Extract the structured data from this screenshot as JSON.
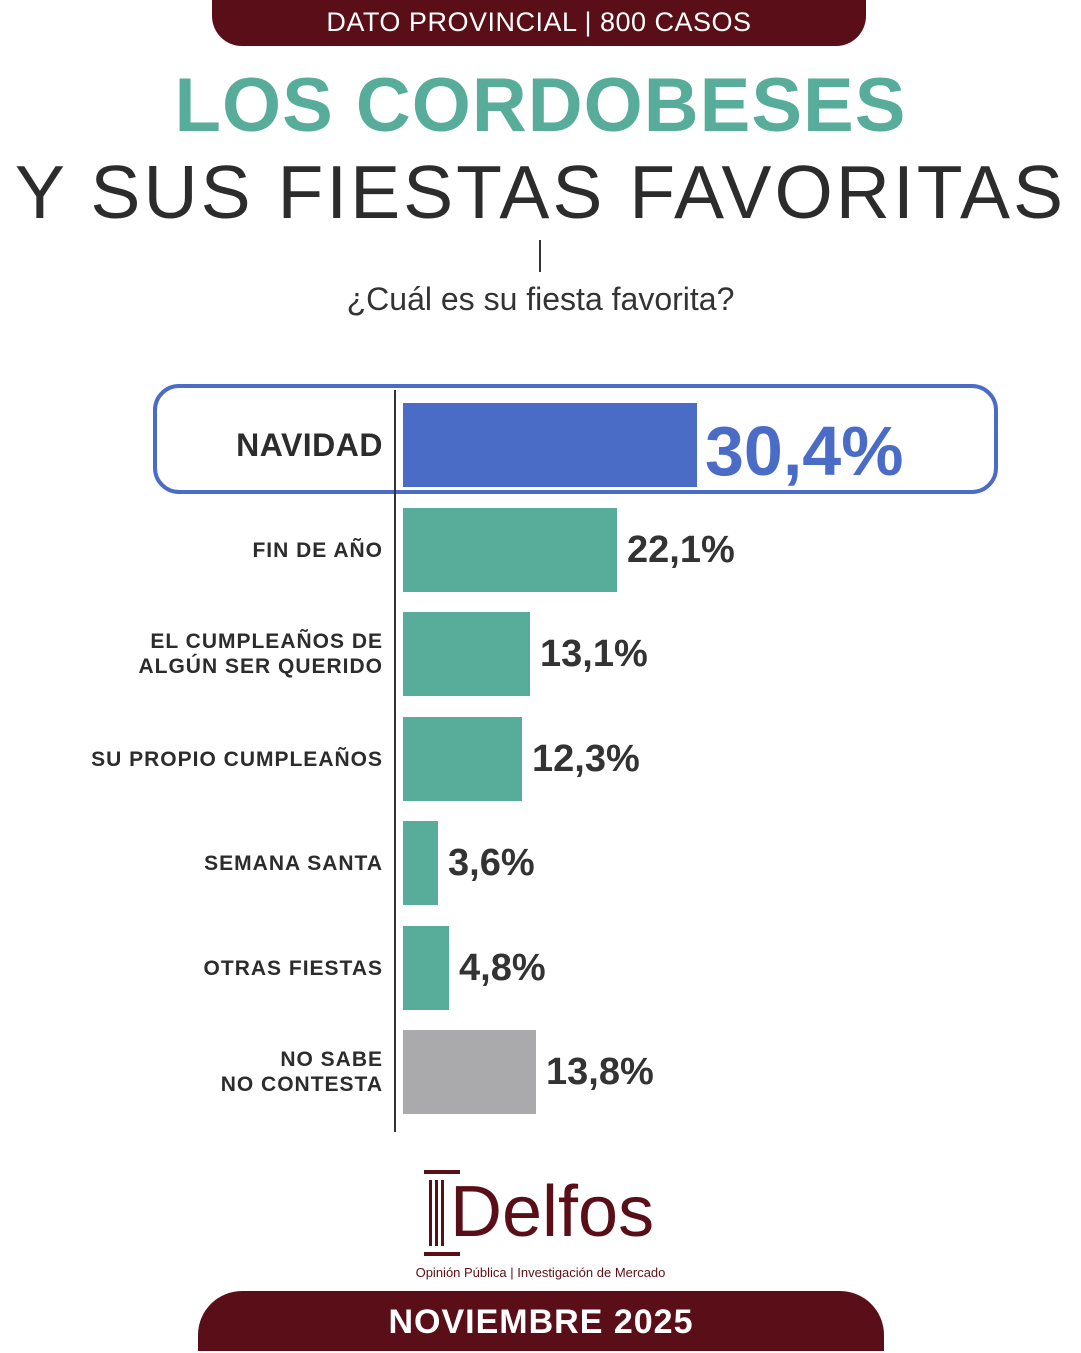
{
  "header": {
    "banner": "DATO PROVINCIAL | 800 CASOS"
  },
  "title": {
    "line1": "LOS CORDOBESES",
    "line2": "Y SUS FIESTAS FAVORITAS"
  },
  "question": "¿Cuál es su fiesta favorita?",
  "colors": {
    "accent_blue": "#4a6cc7",
    "teal": "#57ad9a",
    "gray": "#aaaaad",
    "brand_maroon": "#5a0f18",
    "title_teal": "#57ad9a"
  },
  "chart_data": {
    "type": "bar",
    "orientation": "horizontal",
    "categories": [
      "NAVIDAD",
      "FIN DE AÑO",
      "EL CUMPLEAÑOS DE\nALGÚN SER QUERIDO",
      "SU PROPIO CUMPLEAÑOS",
      "SEMANA SANTA",
      "OTRAS FIESTAS",
      "NO SABE\nNO CONTESTA"
    ],
    "values": [
      30.4,
      22.1,
      13.1,
      12.3,
      3.6,
      4.8,
      13.8
    ],
    "value_labels": [
      "30,4%",
      "22,1%",
      "13,1%",
      "12,3%",
      "3,6%",
      "4,8%",
      "13,8%"
    ],
    "bar_colors": [
      "#4a6cc7",
      "#57ad9a",
      "#57ad9a",
      "#57ad9a",
      "#57ad9a",
      "#57ad9a",
      "#aaaaad"
    ],
    "highlighted": "NAVIDAD",
    "unit": "%",
    "xlim": [
      0,
      30.4
    ]
  },
  "brand": {
    "name": "Delfos",
    "tagline": "Opinión Pública | Investigación de Mercado"
  },
  "footer": {
    "date": "NOVIEMBRE 2025"
  }
}
